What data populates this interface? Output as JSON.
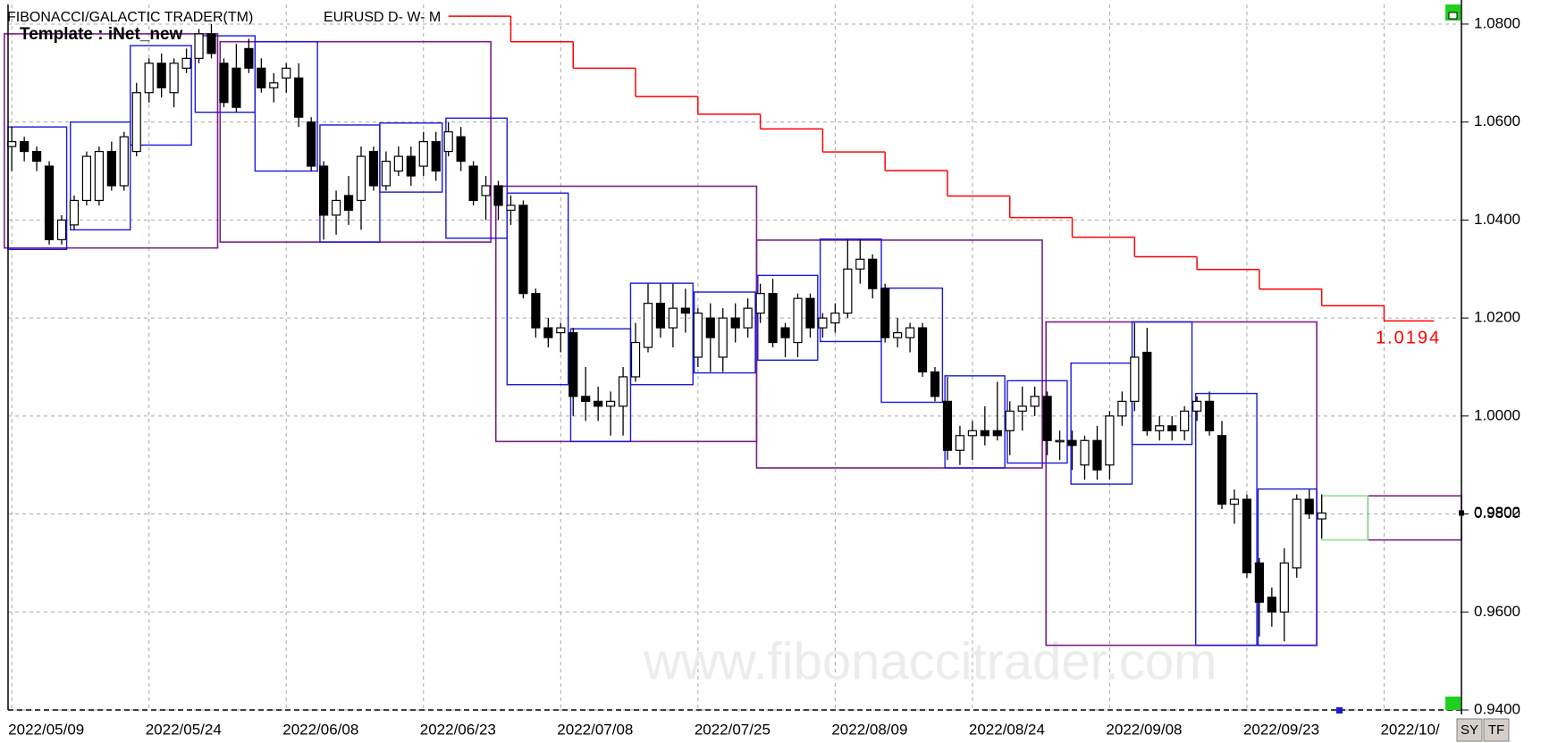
{
  "header": {
    "title": "FIBONACCI/GALACTIC TRADER(TM)",
    "symbol": "EURUSD D- W- M",
    "template": "Template : iNet_new",
    "watermark": "www.fibonaccitrader.com"
  },
  "buttons": [
    "SY",
    "TF"
  ],
  "chart_data": {
    "type": "candlestick",
    "xlim": [
      -0.3,
      116.2
    ],
    "ylim": [
      0.94,
      1.084
    ],
    "grid": true,
    "xticks": [
      {
        "value": 0,
        "label": "2022/05/09"
      },
      {
        "value": 11,
        "label": "2022/05/24"
      },
      {
        "value": 22,
        "label": "2022/06/08"
      },
      {
        "value": 33,
        "label": "2022/06/23"
      },
      {
        "value": 44,
        "label": "2022/07/08"
      },
      {
        "value": 55,
        "label": "2022/07/25"
      },
      {
        "value": 66,
        "label": "2022/08/09"
      },
      {
        "value": 77,
        "label": "2022/08/24"
      },
      {
        "value": 88,
        "label": "2022/09/08"
      },
      {
        "value": 99,
        "label": "2022/09/23"
      },
      {
        "value": 110,
        "label": "2022/10/"
      }
    ],
    "yticks": [
      {
        "value": 0.94,
        "label": "0.9400"
      },
      {
        "value": 0.96,
        "label": "0.9600"
      },
      {
        "value": 0.98,
        "label": "0.9800"
      },
      {
        "value": 1.0,
        "label": "1.0000"
      },
      {
        "value": 1.02,
        "label": "1.0200"
      },
      {
        "value": 1.04,
        "label": "1.0400"
      },
      {
        "value": 1.06,
        "label": "1.0600"
      },
      {
        "value": 1.08,
        "label": "1.0800"
      }
    ],
    "candles": {
      "open": [
        1.055,
        1.056,
        1.054,
        1.051,
        1.036,
        1.039,
        1.044,
        1.044,
        1.054,
        1.047,
        1.054,
        1.066,
        1.072,
        1.066,
        1.071,
        1.073,
        1.078,
        1.072,
        1.071,
        1.075,
        1.071,
        1.067,
        1.069,
        1.069,
        1.06,
        1.051,
        1.041,
        1.045,
        1.044,
        1.054,
        1.047,
        1.05,
        1.053,
        1.051,
        1.056,
        1.054,
        1.057,
        1.051,
        1.045,
        1.047,
        1.042,
        1.043,
        1.025,
        1.018,
        1.017,
        1.017,
        1.004,
        1.003,
        1.002,
        1.002,
        1.008,
        1.014,
        1.023,
        1.018,
        1.022,
        1.012,
        1.02,
        1.012,
        1.02,
        1.018,
        1.021,
        1.025,
        1.018,
        1.015,
        1.024,
        1.018,
        1.019,
        1.021,
        1.03,
        1.032,
        1.026,
        1.016,
        1.016,
        1.018,
        1.009,
        1.003,
        0.993,
        0.996,
        0.997,
        0.997,
        0.997,
        1.001,
        1.002,
        1.004,
        0.995,
        0.995,
        0.99,
        0.995,
        0.99,
        1.0,
        1.003,
        1.013,
        0.997,
        0.998,
        0.997,
        1.001,
        1.003,
        0.996,
        0.982,
        0.983,
        0.97,
        0.963,
        0.96,
        0.969,
        0.983,
        0.979
      ],
      "high": [
        1.059,
        1.057,
        1.055,
        1.052,
        1.041,
        1.045,
        1.054,
        1.055,
        1.056,
        1.058,
        1.068,
        1.073,
        1.074,
        1.073,
        1.075,
        1.079,
        1.08,
        1.073,
        1.076,
        1.077,
        1.073,
        1.07,
        1.072,
        1.072,
        1.061,
        1.052,
        1.046,
        1.049,
        1.055,
        1.055,
        1.054,
        1.055,
        1.055,
        1.058,
        1.058,
        1.06,
        1.059,
        1.052,
        1.049,
        1.048,
        1.045,
        1.044,
        1.026,
        1.02,
        1.019,
        1.018,
        1.01,
        1.006,
        1.005,
        1.01,
        1.019,
        1.027,
        1.027,
        1.027,
        1.026,
        1.022,
        1.023,
        1.022,
        1.023,
        1.024,
        1.027,
        1.028,
        1.019,
        1.025,
        1.025,
        1.021,
        1.023,
        1.036,
        1.036,
        1.033,
        1.027,
        1.02,
        1.019,
        1.019,
        1.01,
        1.008,
        0.998,
        0.999,
        1.002,
        1.007,
        1.003,
        1.006,
        1.006,
        1.005,
        0.997,
        0.997,
        0.996,
        0.998,
        1.001,
        1.005,
        1.019,
        1.018,
        1.0,
        1.0,
        1.002,
        1.004,
        1.005,
        0.999,
        0.985,
        0.984,
        0.971,
        0.965,
        0.973,
        0.984,
        0.985,
        0.984
      ],
      "low": [
        1.05,
        1.052,
        1.05,
        1.035,
        1.035,
        1.038,
        1.043,
        1.043,
        1.046,
        1.046,
        1.053,
        1.064,
        1.065,
        1.063,
        1.07,
        1.072,
        1.073,
        1.063,
        1.062,
        1.07,
        1.066,
        1.064,
        1.066,
        1.059,
        1.05,
        1.036,
        1.037,
        1.039,
        1.038,
        1.046,
        1.046,
        1.049,
        1.047,
        1.049,
        1.048,
        1.053,
        1.05,
        1.043,
        1.04,
        1.04,
        1.039,
        1.024,
        1.016,
        1.014,
        1.013,
        1.0,
        0.999,
        0.999,
        0.996,
        0.996,
        1.007,
        1.013,
        1.016,
        1.014,
        1.017,
        1.01,
        1.009,
        1.009,
        1.015,
        1.016,
        1.019,
        1.014,
        1.012,
        1.012,
        1.016,
        1.016,
        1.017,
        1.02,
        1.027,
        1.024,
        1.015,
        1.014,
        1.013,
        1.008,
        1.003,
        0.991,
        0.99,
        0.991,
        0.994,
        0.995,
        0.992,
        0.997,
        1.0,
        0.992,
        0.991,
        0.989,
        0.987,
        0.987,
        0.987,
        0.998,
        1.001,
        0.996,
        0.995,
        0.995,
        0.995,
        0.999,
        0.996,
        0.981,
        0.978,
        0.967,
        0.955,
        0.957,
        0.954,
        0.967,
        0.979,
        0.975
      ],
      "close": [
        1.056,
        1.054,
        1.052,
        1.036,
        1.04,
        1.044,
        1.053,
        1.054,
        1.047,
        1.057,
        1.066,
        1.072,
        1.067,
        1.072,
        1.073,
        1.078,
        1.074,
        1.064,
        1.063,
        1.071,
        1.067,
        1.068,
        1.071,
        1.061,
        1.051,
        1.041,
        1.044,
        1.042,
        1.053,
        1.047,
        1.052,
        1.053,
        1.049,
        1.056,
        1.05,
        1.058,
        1.052,
        1.044,
        1.047,
        1.043,
        1.043,
        1.025,
        1.018,
        1.016,
        1.018,
        1.004,
        1.003,
        1.002,
        1.003,
        1.008,
        1.015,
        1.023,
        1.018,
        1.022,
        1.021,
        1.021,
        1.016,
        1.02,
        1.018,
        1.022,
        1.025,
        1.015,
        1.016,
        1.024,
        1.018,
        1.02,
        1.021,
        1.03,
        1.032,
        1.026,
        1.016,
        1.017,
        1.018,
        1.009,
        1.004,
        0.993,
        0.996,
        0.997,
        0.996,
        0.996,
        1.001,
        1.002,
        1.004,
        0.995,
        0.995,
        0.994,
        0.995,
        0.989,
        1.0,
        1.003,
        1.012,
        0.997,
        0.998,
        0.997,
        1.001,
        1.003,
        0.997,
        0.982,
        0.983,
        0.968,
        0.962,
        0.96,
        0.97,
        0.983,
        0.98,
        0.9802
      ]
    },
    "month_boxes": {
      "color": "#7a1f8a",
      "boxes": [
        {
          "start": -0.6,
          "end": 16.5,
          "high": 1.078,
          "low": 1.0343
        },
        {
          "start": 16.7,
          "end": 38.4,
          "high": 1.0764,
          "low": 1.0355
        },
        {
          "start": 38.8,
          "end": 59.7,
          "high": 1.0469,
          "low": 0.9948
        },
        {
          "start": 59.7,
          "end": 82.6,
          "high": 1.0359,
          "low": 0.9894
        },
        {
          "start": 82.9,
          "end": 104.6,
          "high": 1.0192,
          "low": 0.9532
        },
        {
          "start": 108.7,
          "end": 116.2,
          "high": 0.9837,
          "low": 0.9747
        }
      ]
    },
    "week_boxes": {
      "color": "#1a1ad6",
      "boxes": [
        {
          "start": -0.3,
          "end": 4.4,
          "high": 1.059,
          "low": 1.034
        },
        {
          "start": 4.7,
          "end": 9.5,
          "high": 1.06,
          "low": 1.038
        },
        {
          "start": 9.5,
          "end": 14.4,
          "high": 1.0756,
          "low": 1.0553
        },
        {
          "start": 14.7,
          "end": 19.5,
          "high": 1.0776,
          "low": 1.062
        },
        {
          "start": 19.5,
          "end": 24.5,
          "high": 1.0764,
          "low": 1.05
        },
        {
          "start": 24.7,
          "end": 29.5,
          "high": 1.0594,
          "low": 1.0355
        },
        {
          "start": 29.5,
          "end": 34.5,
          "high": 1.0598,
          "low": 1.0457
        },
        {
          "start": 34.8,
          "end": 39.7,
          "high": 1.0608,
          "low": 1.0363
        },
        {
          "start": 39.7,
          "end": 44.6,
          "high": 1.0455,
          "low": 1.0064
        },
        {
          "start": 44.8,
          "end": 49.6,
          "high": 1.0178,
          "low": 0.9948
        },
        {
          "start": 49.6,
          "end": 54.6,
          "high": 1.0271,
          "low": 1.0064
        },
        {
          "start": 54.7,
          "end": 59.6,
          "high": 1.0253,
          "low": 1.0088
        },
        {
          "start": 59.8,
          "end": 64.6,
          "high": 1.0287,
          "low": 1.0114
        },
        {
          "start": 64.8,
          "end": 69.7,
          "high": 1.0361,
          "low": 1.0152
        },
        {
          "start": 69.7,
          "end": 74.6,
          "high": 1.0261,
          "low": 1.0028
        },
        {
          "start": 74.8,
          "end": 79.6,
          "high": 1.0082,
          "low": 0.9894
        },
        {
          "start": 79.8,
          "end": 84.6,
          "high": 1.0072,
          "low": 0.9904
        },
        {
          "start": 84.9,
          "end": 89.8,
          "high": 1.0108,
          "low": 0.9861
        },
        {
          "start": 89.8,
          "end": 94.6,
          "high": 1.0192,
          "low": 0.9942
        },
        {
          "start": 94.9,
          "end": 99.8,
          "high": 1.0046,
          "low": 0.9532
        },
        {
          "start": 99.9,
          "end": 104.6,
          "high": 0.9851,
          "low": 0.9532
        },
        {
          "start": 108.7,
          "end": 108.7,
          "high": 0.9837,
          "low": 0.9747
        }
      ]
    },
    "current_week_box": {
      "color": "#7fe07f",
      "start": 105,
      "end": 108.7,
      "high": 0.9837,
      "low": 0.9747
    },
    "red_line": {
      "color": "#ff0000",
      "bins": [
        35,
        40,
        45,
        50,
        55,
        60,
        65,
        70,
        75,
        80,
        85,
        90,
        95,
        100,
        105,
        110,
        114
      ],
      "values": [
        1.0816,
        1.0764,
        1.071,
        1.0652,
        1.0616,
        1.0586,
        1.0539,
        1.0501,
        1.0449,
        1.0405,
        1.0365,
        1.0325,
        1.0299,
        1.0259,
        1.0225,
        1.0194
      ]
    }
  }
}
